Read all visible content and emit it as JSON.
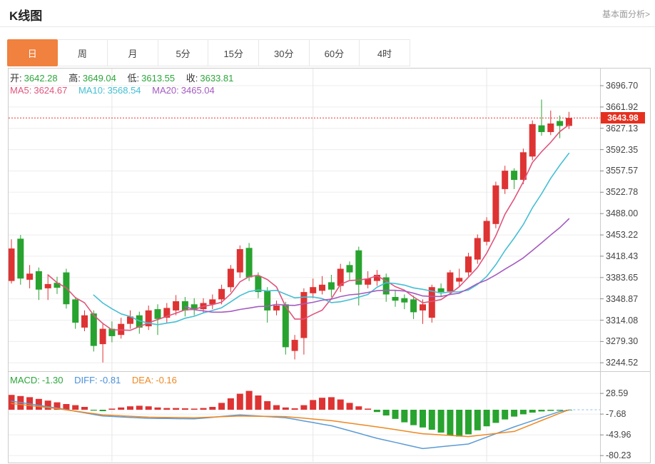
{
  "header": {
    "title": "K线图",
    "link": "基本面分析>"
  },
  "tabs": {
    "items": [
      "日",
      "周",
      "月",
      "5分",
      "15分",
      "30分",
      "60分",
      "4时"
    ],
    "selected_index": 0
  },
  "ohlc": {
    "open_label": "开:",
    "open": "3642.28",
    "high_label": "高:",
    "high": "3649.04",
    "low_label": "低:",
    "low": "3613.55",
    "close_label": "收:",
    "close": "3633.81"
  },
  "ma_legend": {
    "ma5_label": "MA5:",
    "ma5": "3624.67",
    "ma10_label": "MA10:",
    "ma10": "3568.54",
    "ma20_label": "MA20:",
    "ma20": "3465.04"
  },
  "macd_legend": {
    "macd_label": "MACD:",
    "macd": "-1.30",
    "diff_label": "DIFF:",
    "diff": "-0.81",
    "dea_label": "DEA:",
    "dea": "-0.16"
  },
  "price_axis": {
    "current_price": "3643.98",
    "tick_labels": [
      "3696.70",
      "3661.92",
      "3627.13",
      "3592.35",
      "3557.57",
      "3522.78",
      "3488.00",
      "3453.22",
      "3418.43",
      "3383.65",
      "3348.87",
      "3314.08",
      "3279.30",
      "3244.52"
    ]
  },
  "macd_axis": {
    "tick_labels": [
      "28.59",
      "-7.68",
      "-43.96",
      "-80.23"
    ]
  },
  "colors": {
    "up": "#de3333",
    "down": "#28a32f",
    "ma5": "#e0557d",
    "ma10": "#44bfd4",
    "ma20": "#a45bc0",
    "diff": "#5b9bd5",
    "dea": "#ee8822",
    "accent_tab": "#f0813f",
    "badge": "#e6301f",
    "dotted_line": "#ee3333",
    "grid": "#ededed",
    "vgrid": "#e6e6e6",
    "frame": "#ccc",
    "value_green": "#2aa63a"
  },
  "chart_data": {
    "type": "candlestick+macd",
    "title": "K线图 (daily K-line with MA5/MA10/MA20 and MACD)",
    "price_ticks": [
      3696.7,
      3661.92,
      3627.13,
      3592.35,
      3557.57,
      3522.78,
      3488.0,
      3453.22,
      3418.43,
      3383.65,
      3348.87,
      3314.08,
      3279.3,
      3244.52
    ],
    "current_price": 3643.98,
    "macd_ticks": [
      28.59,
      -7.68,
      -43.96,
      -80.23
    ],
    "candle_order": [
      "open",
      "close",
      "high",
      "low"
    ],
    "candles": [
      [
        3378,
        3431,
        3446,
        3374
      ],
      [
        3447,
        3382,
        3453,
        3372
      ],
      [
        3380,
        3390,
        3404,
        3366
      ],
      [
        3394,
        3364,
        3400,
        3347
      ],
      [
        3366,
        3373,
        3388,
        3347
      ],
      [
        3375,
        3367,
        3385,
        3357
      ],
      [
        3392,
        3340,
        3398,
        3333
      ],
      [
        3348,
        3310,
        3352,
        3300
      ],
      [
        3302,
        3322,
        3330,
        3296
      ],
      [
        3325,
        3272,
        3330,
        3263
      ],
      [
        3275,
        3300,
        3308,
        3245
      ],
      [
        3300,
        3288,
        3312,
        3278
      ],
      [
        3290,
        3308,
        3318,
        3284
      ],
      [
        3308,
        3320,
        3330,
        3300
      ],
      [
        3322,
        3302,
        3328,
        3292
      ],
      [
        3304,
        3330,
        3338,
        3298
      ],
      [
        3332,
        3316,
        3340,
        3290
      ],
      [
        3318,
        3334,
        3342,
        3310
      ],
      [
        3330,
        3345,
        3355,
        3322
      ],
      [
        3345,
        3330,
        3352,
        3320
      ],
      [
        3340,
        3332,
        3350,
        3322
      ],
      [
        3332,
        3342,
        3350,
        3326
      ],
      [
        3340,
        3348,
        3356,
        3332
      ],
      [
        3348,
        3365,
        3372,
        3340
      ],
      [
        3368,
        3398,
        3404,
        3360
      ],
      [
        3392,
        3430,
        3436,
        3383
      ],
      [
        3432,
        3384,
        3440,
        3378
      ],
      [
        3386,
        3360,
        3392,
        3350
      ],
      [
        3362,
        3330,
        3368,
        3310
      ],
      [
        3330,
        3338,
        3346,
        3322
      ],
      [
        3340,
        3270,
        3344,
        3258
      ],
      [
        3264,
        3282,
        3290,
        3250
      ],
      [
        3285,
        3360,
        3366,
        3258
      ],
      [
        3358,
        3368,
        3382,
        3350
      ],
      [
        3362,
        3372,
        3386,
        3356
      ],
      [
        3376,
        3364,
        3388,
        3352
      ],
      [
        3370,
        3398,
        3406,
        3360
      ],
      [
        3404,
        3392,
        3410,
        3380
      ],
      [
        3428,
        3372,
        3434,
        3338
      ],
      [
        3372,
        3382,
        3394,
        3366
      ],
      [
        3378,
        3388,
        3396,
        3370
      ],
      [
        3384,
        3356,
        3390,
        3344
      ],
      [
        3352,
        3346,
        3362,
        3336
      ],
      [
        3350,
        3343,
        3356,
        3332
      ],
      [
        3348,
        3327,
        3354,
        3316
      ],
      [
        3330,
        3340,
        3348,
        3308
      ],
      [
        3318,
        3368,
        3372,
        3310
      ],
      [
        3366,
        3360,
        3374,
        3352
      ],
      [
        3361,
        3392,
        3396,
        3355
      ],
      [
        3377,
        3383,
        3398,
        3368
      ],
      [
        3392,
        3418,
        3424,
        3386
      ],
      [
        3413,
        3448,
        3454,
        3406
      ],
      [
        3442,
        3476,
        3482,
        3436
      ],
      [
        3471,
        3534,
        3540,
        3464
      ],
      [
        3528,
        3558,
        3566,
        3520
      ],
      [
        3558,
        3543,
        3562,
        3528
      ],
      [
        3543,
        3588,
        3594,
        3536
      ],
      [
        3581,
        3634,
        3640,
        3575
      ],
      [
        3632,
        3621,
        3674,
        3615
      ],
      [
        3621,
        3635,
        3656,
        3616
      ],
      [
        3639,
        3631,
        3648,
        3611
      ],
      [
        3631,
        3644,
        3654,
        3626
      ]
    ],
    "ma_periods": [
      5,
      10,
      20
    ],
    "macd_histogram": [
      26,
      24,
      22,
      19,
      16,
      13,
      10,
      8,
      5,
      -1.5,
      -2.5,
      2,
      4,
      6,
      7,
      6,
      4,
      3,
      3,
      2.5,
      2,
      3,
      5,
      12,
      20,
      28,
      33,
      25,
      15,
      8,
      4,
      2.5,
      8,
      17,
      21,
      22,
      18,
      12,
      6,
      2,
      -4,
      -10,
      -16,
      -22,
      -27,
      -31,
      -35,
      -40,
      -45,
      -47,
      -43,
      -36,
      -29,
      -23,
      -17,
      -12,
      -8,
      -5,
      -3,
      -2,
      -1.6,
      -1.3
    ],
    "diff_series": [
      15,
      12.6,
      10.2,
      7.8,
      5.4,
      3,
      0.2,
      -2.6,
      -5.4,
      -8.2,
      -11,
      -11.8,
      -12.6,
      -13.4,
      -14.2,
      -15,
      -15.2,
      -15.4,
      -15.6,
      -15.8,
      -16,
      -14.6,
      -13.2,
      -11.8,
      -10.4,
      -9,
      -10,
      -11,
      -12,
      -13,
      -14,
      -16.8,
      -19.6,
      -22.4,
      -25.2,
      -28,
      -32.4,
      -36.8,
      -41.2,
      -45.6,
      -50,
      -53.6,
      -57.2,
      -60.8,
      -64.4,
      -68,
      -66.4,
      -64.8,
      -63.2,
      -61.6,
      -60,
      -54,
      -48,
      -42,
      -36,
      -30,
      -24.6,
      -19.2,
      -13.8,
      -8.4,
      -3,
      -0.81
    ],
    "dea_series": [
      11,
      9.2,
      7.4,
      5.6,
      3.8,
      2,
      -0.2,
      -2.4,
      -4.6,
      -6.8,
      -9,
      -9.8,
      -10.6,
      -11.4,
      -12.2,
      -13,
      -13.2,
      -13.4,
      -13.6,
      -13.8,
      -14,
      -13.4,
      -12.8,
      -12.2,
      -11.6,
      -11,
      -11.2,
      -11.4,
      -11.6,
      -11.8,
      -12,
      -13.4,
      -14.8,
      -16.2,
      -17.6,
      -19,
      -21.2,
      -23.4,
      -25.6,
      -27.8,
      -30,
      -32.4,
      -34.8,
      -37.2,
      -39.6,
      -42,
      -43,
      -44,
      -45,
      -46,
      -47,
      -45.2,
      -43.4,
      -41.6,
      -39.8,
      -38,
      -31.6,
      -25.2,
      -18.8,
      -12.4,
      -6,
      -0.16
    ],
    "x_gridline_indices": [
      11,
      33,
      52
    ],
    "legend": {
      "ma5": 3624.67,
      "ma10": 3568.54,
      "ma20": 3465.04,
      "macd": -1.3,
      "diff": -0.81,
      "dea": -0.16
    },
    "ohlc_readout": {
      "open": 3642.28,
      "high": 3649.04,
      "low": 3613.55,
      "close": 3633.81
    }
  }
}
